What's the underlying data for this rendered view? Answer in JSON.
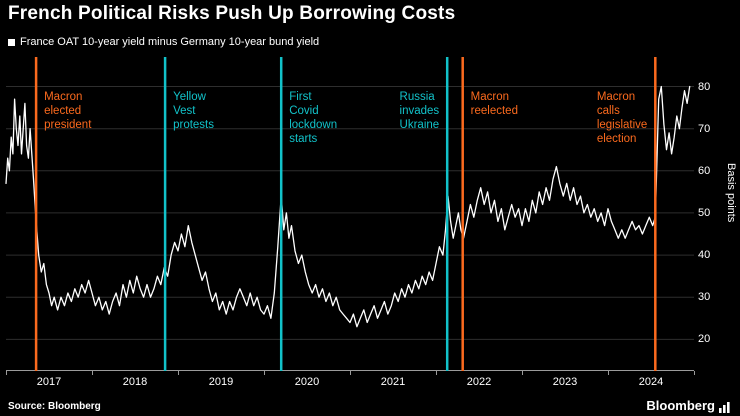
{
  "title": "French Political Risks Push Up Borrowing Costs",
  "legend": {
    "marker_color": "#ffffff",
    "label": "France OAT 10-year yield minus Germany 10-year bund yield"
  },
  "footer": {
    "source": "Source: Bloomberg",
    "logo": "Bloomberg"
  },
  "colors": {
    "background": "#000000",
    "grid": "#2e2e2e",
    "axis": "#9b9b9b",
    "text": "#ffffff",
    "orange": "#fb6a1e",
    "cyan": "#12c2c9"
  },
  "chart_data": {
    "type": "line",
    "title": "French Political Risks Push Up Borrowing Costs",
    "subtitle": "France OAT 10-year yield minus Germany 10-year bund yield",
    "xlabel": "",
    "ylabel": "Basis points",
    "xlim": [
      2017,
      2025
    ],
    "ylim": [
      12.5,
      87
    ],
    "y_ticks": [
      80,
      70,
      60,
      50,
      40,
      30,
      20
    ],
    "x_ticks": [
      "2017",
      "2018",
      "2019",
      "2020",
      "2021",
      "2022",
      "2023",
      "2024"
    ],
    "grid": "horizontal",
    "legend_position": "top-left",
    "series": [
      {
        "name": "France OAT 10-year yield minus Germany 10-year bund yield",
        "color": "#ffffff",
        "points": [
          [
            2017.0,
            57
          ],
          [
            2017.02,
            63
          ],
          [
            2017.04,
            60
          ],
          [
            2017.06,
            68
          ],
          [
            2017.08,
            64
          ],
          [
            2017.1,
            77
          ],
          [
            2017.12,
            70
          ],
          [
            2017.14,
            66
          ],
          [
            2017.16,
            73
          ],
          [
            2017.18,
            64
          ],
          [
            2017.2,
            70
          ],
          [
            2017.22,
            76
          ],
          [
            2017.24,
            66
          ],
          [
            2017.26,
            63
          ],
          [
            2017.28,
            70
          ],
          [
            2017.3,
            64
          ],
          [
            2017.32,
            58
          ],
          [
            2017.35,
            48
          ],
          [
            2017.38,
            40
          ],
          [
            2017.41,
            36
          ],
          [
            2017.44,
            38
          ],
          [
            2017.47,
            33
          ],
          [
            2017.5,
            31
          ],
          [
            2017.53,
            28
          ],
          [
            2017.56,
            30
          ],
          [
            2017.6,
            27
          ],
          [
            2017.64,
            30
          ],
          [
            2017.68,
            28
          ],
          [
            2017.72,
            31
          ],
          [
            2017.76,
            29
          ],
          [
            2017.8,
            32
          ],
          [
            2017.84,
            30
          ],
          [
            2017.88,
            33
          ],
          [
            2017.92,
            31
          ],
          [
            2017.96,
            34
          ],
          [
            2018.0,
            31
          ],
          [
            2018.04,
            28
          ],
          [
            2018.08,
            30
          ],
          [
            2018.12,
            27
          ],
          [
            2018.16,
            29
          ],
          [
            2018.2,
            26
          ],
          [
            2018.24,
            29
          ],
          [
            2018.28,
            31
          ],
          [
            2018.32,
            28
          ],
          [
            2018.36,
            33
          ],
          [
            2018.4,
            30
          ],
          [
            2018.44,
            34
          ],
          [
            2018.48,
            31
          ],
          [
            2018.52,
            35
          ],
          [
            2018.56,
            32
          ],
          [
            2018.6,
            30
          ],
          [
            2018.64,
            33
          ],
          [
            2018.68,
            30
          ],
          [
            2018.72,
            32
          ],
          [
            2018.76,
            35
          ],
          [
            2018.8,
            33
          ],
          [
            2018.84,
            37
          ],
          [
            2018.88,
            35
          ],
          [
            2018.92,
            40
          ],
          [
            2018.96,
            43
          ],
          [
            2019.0,
            41
          ],
          [
            2019.04,
            45
          ],
          [
            2019.08,
            42
          ],
          [
            2019.12,
            47
          ],
          [
            2019.16,
            43
          ],
          [
            2019.2,
            40
          ],
          [
            2019.24,
            37
          ],
          [
            2019.28,
            34
          ],
          [
            2019.32,
            36
          ],
          [
            2019.36,
            32
          ],
          [
            2019.4,
            29
          ],
          [
            2019.44,
            31
          ],
          [
            2019.48,
            27
          ],
          [
            2019.52,
            29
          ],
          [
            2019.56,
            26
          ],
          [
            2019.6,
            29
          ],
          [
            2019.64,
            27
          ],
          [
            2019.68,
            30
          ],
          [
            2019.72,
            32
          ],
          [
            2019.76,
            30
          ],
          [
            2019.8,
            28
          ],
          [
            2019.84,
            31
          ],
          [
            2019.88,
            28
          ],
          [
            2019.92,
            30
          ],
          [
            2019.96,
            27
          ],
          [
            2020.0,
            26
          ],
          [
            2020.04,
            28
          ],
          [
            2020.08,
            25
          ],
          [
            2020.12,
            31
          ],
          [
            2020.16,
            42
          ],
          [
            2020.2,
            54
          ],
          [
            2020.23,
            46
          ],
          [
            2020.26,
            50
          ],
          [
            2020.29,
            44
          ],
          [
            2020.32,
            47
          ],
          [
            2020.36,
            41
          ],
          [
            2020.4,
            38
          ],
          [
            2020.44,
            40
          ],
          [
            2020.48,
            36
          ],
          [
            2020.52,
            33
          ],
          [
            2020.56,
            31
          ],
          [
            2020.6,
            33
          ],
          [
            2020.64,
            30
          ],
          [
            2020.68,
            32
          ],
          [
            2020.72,
            29
          ],
          [
            2020.76,
            31
          ],
          [
            2020.8,
            28
          ],
          [
            2020.84,
            30
          ],
          [
            2020.88,
            27
          ],
          [
            2020.92,
            26
          ],
          [
            2020.96,
            25
          ],
          [
            2021.0,
            24
          ],
          [
            2021.04,
            26
          ],
          [
            2021.08,
            23
          ],
          [
            2021.12,
            25
          ],
          [
            2021.16,
            27
          ],
          [
            2021.2,
            24
          ],
          [
            2021.24,
            26
          ],
          [
            2021.28,
            28
          ],
          [
            2021.32,
            25
          ],
          [
            2021.36,
            27
          ],
          [
            2021.4,
            29
          ],
          [
            2021.44,
            26
          ],
          [
            2021.48,
            28
          ],
          [
            2021.52,
            31
          ],
          [
            2021.56,
            29
          ],
          [
            2021.6,
            32
          ],
          [
            2021.64,
            30
          ],
          [
            2021.68,
            33
          ],
          [
            2021.72,
            31
          ],
          [
            2021.76,
            34
          ],
          [
            2021.8,
            32
          ],
          [
            2021.84,
            35
          ],
          [
            2021.88,
            33
          ],
          [
            2021.92,
            36
          ],
          [
            2021.96,
            34
          ],
          [
            2022.0,
            38
          ],
          [
            2022.04,
            42
          ],
          [
            2022.08,
            40
          ],
          [
            2022.11,
            46
          ],
          [
            2022.14,
            54
          ],
          [
            2022.17,
            48
          ],
          [
            2022.2,
            44
          ],
          [
            2022.23,
            47
          ],
          [
            2022.26,
            50
          ],
          [
            2022.29,
            46
          ],
          [
            2022.32,
            44
          ],
          [
            2022.36,
            48
          ],
          [
            2022.4,
            52
          ],
          [
            2022.44,
            49
          ],
          [
            2022.48,
            53
          ],
          [
            2022.52,
            56
          ],
          [
            2022.56,
            52
          ],
          [
            2022.6,
            55
          ],
          [
            2022.64,
            50
          ],
          [
            2022.68,
            53
          ],
          [
            2022.72,
            48
          ],
          [
            2022.76,
            51
          ],
          [
            2022.8,
            46
          ],
          [
            2022.84,
            49
          ],
          [
            2022.88,
            52
          ],
          [
            2022.92,
            49
          ],
          [
            2022.96,
            51
          ],
          [
            2023.0,
            47
          ],
          [
            2023.04,
            51
          ],
          [
            2023.08,
            48
          ],
          [
            2023.12,
            53
          ],
          [
            2023.16,
            50
          ],
          [
            2023.2,
            55
          ],
          [
            2023.24,
            52
          ],
          [
            2023.28,
            56
          ],
          [
            2023.32,
            53
          ],
          [
            2023.36,
            58
          ],
          [
            2023.4,
            61
          ],
          [
            2023.44,
            57
          ],
          [
            2023.48,
            54
          ],
          [
            2023.52,
            57
          ],
          [
            2023.56,
            53
          ],
          [
            2023.6,
            56
          ],
          [
            2023.64,
            52
          ],
          [
            2023.68,
            54
          ],
          [
            2023.72,
            50
          ],
          [
            2023.76,
            52
          ],
          [
            2023.8,
            49
          ],
          [
            2023.84,
            51
          ],
          [
            2023.88,
            48
          ],
          [
            2023.92,
            50
          ],
          [
            2023.96,
            47
          ],
          [
            2024.0,
            51
          ],
          [
            2024.04,
            48
          ],
          [
            2024.08,
            46
          ],
          [
            2024.12,
            44
          ],
          [
            2024.16,
            46
          ],
          [
            2024.2,
            44
          ],
          [
            2024.24,
            46
          ],
          [
            2024.28,
            48
          ],
          [
            2024.32,
            46
          ],
          [
            2024.36,
            47
          ],
          [
            2024.4,
            45
          ],
          [
            2024.44,
            47
          ],
          [
            2024.48,
            49
          ],
          [
            2024.52,
            47
          ],
          [
            2024.55,
            49
          ],
          [
            2024.57,
            63
          ],
          [
            2024.59,
            77
          ],
          [
            2024.62,
            80
          ],
          [
            2024.65,
            71
          ],
          [
            2024.68,
            65
          ],
          [
            2024.71,
            69
          ],
          [
            2024.74,
            64
          ],
          [
            2024.77,
            68
          ],
          [
            2024.8,
            73
          ],
          [
            2024.83,
            70
          ],
          [
            2024.86,
            75
          ],
          [
            2024.89,
            79
          ],
          [
            2024.92,
            76
          ],
          [
            2024.95,
            80
          ]
        ]
      }
    ],
    "annotations": [
      {
        "lines": [
          "Macron",
          "elected",
          "president"
        ],
        "x": 2017.35,
        "color": "orange",
        "side": "right"
      },
      {
        "lines": [
          "Yellow",
          "Vest",
          "protests"
        ],
        "x": 2018.85,
        "color": "cyan",
        "side": "right"
      },
      {
        "lines": [
          "First",
          "Covid",
          "lockdown",
          "starts"
        ],
        "x": 2020.2,
        "color": "cyan",
        "side": "right"
      },
      {
        "lines": [
          "Russia",
          "invades",
          "Ukraine"
        ],
        "x": 2022.13,
        "color": "cyan",
        "side": "left"
      },
      {
        "lines": [
          "Macron",
          "reelected"
        ],
        "x": 2022.31,
        "color": "orange",
        "side": "right"
      },
      {
        "lines": [
          "Macron",
          "calls",
          "legislative",
          "election"
        ],
        "x": 2024.55,
        "color": "orange",
        "side": "left"
      }
    ]
  }
}
